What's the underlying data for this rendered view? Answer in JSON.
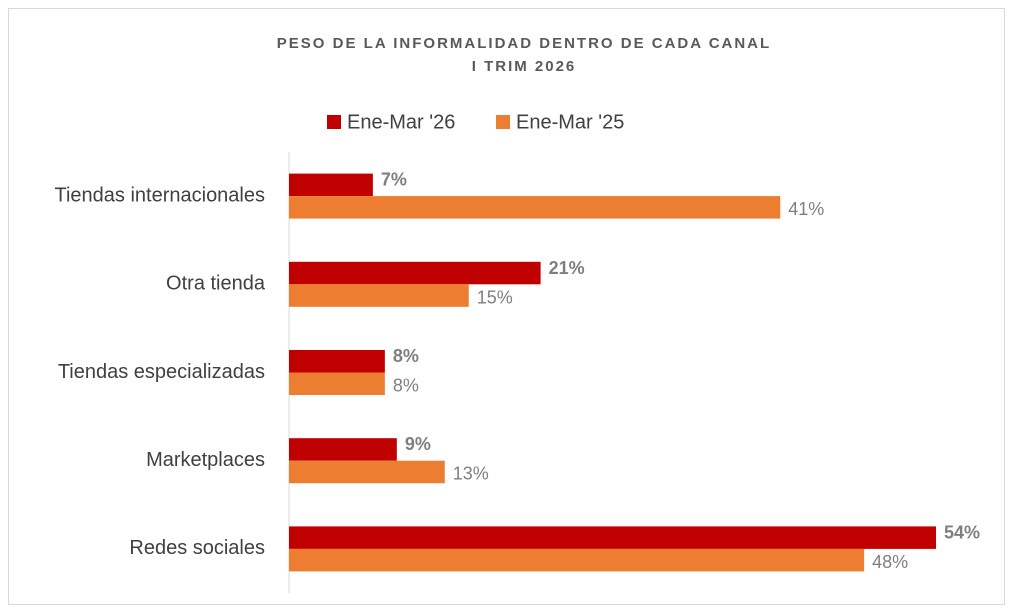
{
  "chart_data": {
    "type": "hbar",
    "title": "PESO DE LA INFORMALIDAD DENTRO DE CADA CANAL",
    "subtitle": "I TRIM 2026",
    "categories": [
      "Tiendas internacionales",
      "Otra tienda",
      "Tiendas especializadas",
      "Marketplaces",
      "Redes sociales"
    ],
    "series": [
      {
        "name": "Ene-Mar '26",
        "color": "#c00000",
        "values": [
          7,
          21,
          8,
          9,
          54
        ],
        "value_labels": [
          "7%",
          "21%",
          "8%",
          "9%",
          "54%"
        ]
      },
      {
        "name": "Ene-Mar '25",
        "color": "#ed7d31",
        "values": [
          41,
          15,
          8,
          13,
          48
        ],
        "value_labels": [
          "41%",
          "15%",
          "8%",
          "13%",
          "48%"
        ]
      }
    ],
    "xlim": [
      0,
      55
    ],
    "legend": "top"
  }
}
